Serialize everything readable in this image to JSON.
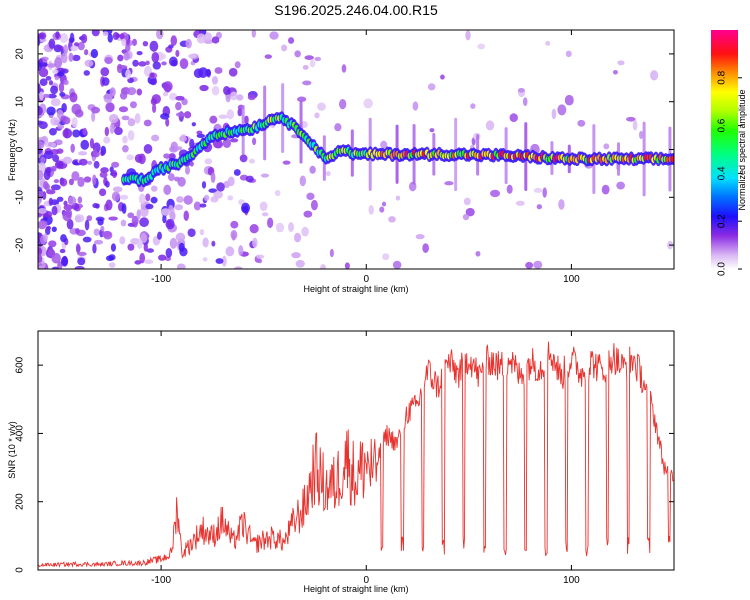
{
  "title": "S196.2025.246.04.00.R15",
  "chart_data": [
    {
      "type": "heatmap",
      "name": "spectrogram",
      "xlabel": "Height of straight line (km)",
      "ylabel": "Frequency (Hz)",
      "xlim": [
        -160,
        150
      ],
      "ylim": [
        -25,
        25
      ],
      "xticks": [
        -100,
        0,
        100
      ],
      "yticks": [
        -20,
        -10,
        0,
        10,
        20
      ],
      "colorbar": {
        "label": "Normalized spectral amplitude",
        "range": [
          0,
          1
        ],
        "ticks": [
          0.0,
          0.2,
          0.4,
          0.6,
          0.8
        ]
      },
      "ridge": [
        {
          "x": -115,
          "y": -6
        },
        {
          "x": -108,
          "y": -6.5
        },
        {
          "x": -100,
          "y": -4
        },
        {
          "x": -92,
          "y": -3
        },
        {
          "x": -85,
          "y": -1
        },
        {
          "x": -75,
          "y": 3
        },
        {
          "x": -55,
          "y": 4.5
        },
        {
          "x": -42,
          "y": 7
        },
        {
          "x": -30,
          "y": 3
        },
        {
          "x": -20,
          "y": -2
        },
        {
          "x": -12,
          "y": 0
        },
        {
          "x": -5,
          "y": -1
        },
        {
          "x": 10,
          "y": -1
        },
        {
          "x": 40,
          "y": -1
        },
        {
          "x": 70,
          "y": -1.3
        },
        {
          "x": 100,
          "y": -2
        },
        {
          "x": 130,
          "y": -2
        },
        {
          "x": 150,
          "y": -2
        }
      ]
    },
    {
      "type": "line",
      "name": "snr",
      "xlabel": "Height of straight line (km)",
      "ylabel": "SNR (10 * v/v)",
      "xlim": [
        -160,
        150
      ],
      "ylim": [
        0,
        700
      ],
      "xticks": [
        -100,
        0,
        100
      ],
      "yticks": [
        0,
        200,
        400,
        600
      ],
      "series": [
        {
          "name": "SNR",
          "color": "#e8322e",
          "x": [
            -160,
            -150,
            -140,
            -130,
            -120,
            -110,
            -100,
            -95,
            -92,
            -90,
            -85,
            -80,
            -75,
            -70,
            -65,
            -60,
            -55,
            -50,
            -45,
            -40,
            -35,
            -30,
            -25,
            -20,
            -15,
            -10,
            -5,
            0,
            5,
            10,
            15,
            20,
            25,
            30,
            35,
            40,
            45,
            50,
            55,
            60,
            65,
            70,
            75,
            80,
            85,
            90,
            95,
            100,
            105,
            110,
            115,
            120,
            125,
            130,
            135,
            140,
            145,
            150
          ],
          "values": [
            18,
            20,
            22,
            20,
            25,
            25,
            40,
            60,
            240,
            60,
            100,
            150,
            120,
            180,
            100,
            170,
            90,
            110,
            120,
            100,
            180,
            230,
            380,
            300,
            310,
            420,
            330,
            400,
            340,
            430,
            400,
            500,
            520,
            630,
            580,
            660,
            620,
            680,
            610,
            670,
            640,
            670,
            610,
            660,
            640,
            690,
            610,
            670,
            620,
            660,
            630,
            680,
            640,
            670,
            600,
            500,
            330,
            290
          ]
        }
      ]
    }
  ]
}
